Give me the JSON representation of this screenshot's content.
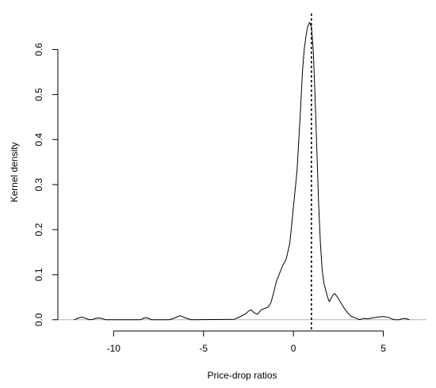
{
  "chart_data": {
    "type": "line",
    "title": "",
    "xlabel": "Price-drop ratios",
    "ylabel": "Kernel density",
    "xlim": [
      -13.1,
      7.4
    ],
    "ylim": [
      -0.025,
      0.68
    ],
    "x_ticks": [
      -10,
      -5,
      0,
      5
    ],
    "x_tick_labels": [
      "-10",
      "-5",
      "0",
      "5"
    ],
    "y_ticks": [
      0.0,
      0.1,
      0.2,
      0.3,
      0.4,
      0.5,
      0.6
    ],
    "y_tick_labels": [
      "0.0",
      "0.1",
      "0.2",
      "0.3",
      "0.4",
      "0.5",
      "0.6"
    ],
    "grid": false,
    "legend": "none",
    "reference_line_y": 0,
    "vertical_reference_x": 1.0,
    "series": [
      {
        "x": [
          -12.2,
          -11.95,
          -11.75,
          -11.55,
          -11.35,
          -11.15,
          -10.9,
          -10.65,
          -10.45,
          -10.2,
          -8.5,
          -8.3,
          -8.1,
          -7.9,
          -6.9,
          -6.6,
          -6.3,
          -6.0,
          -5.7,
          -3.3,
          -3.0,
          -2.7,
          -2.5,
          -2.35,
          -2.2,
          -2.0,
          -1.8,
          -1.6,
          -1.4,
          -1.25,
          -1.1,
          -0.95,
          -0.8,
          -0.6,
          -0.4,
          -0.2,
          0.0,
          0.1,
          0.2,
          0.3,
          0.4,
          0.5,
          0.6,
          0.7,
          0.8,
          0.9,
          1.0,
          1.1,
          1.2,
          1.3,
          1.4,
          1.5,
          1.6,
          1.7,
          1.8,
          1.9,
          2.0,
          2.1,
          2.2,
          2.3,
          2.45,
          2.6,
          2.8,
          3.0,
          3.2,
          3.5,
          3.7,
          3.9,
          4.1,
          4.4,
          4.7,
          5.0,
          5.3,
          5.6,
          5.9,
          6.1,
          6.3,
          6.45
        ],
        "y": [
          0.0,
          0.004,
          0.006,
          0.003,
          0.0,
          0.001,
          0.004,
          0.003,
          0.0,
          0.0,
          0.0,
          0.004,
          0.004,
          0.0,
          0.0,
          0.004,
          0.009,
          0.004,
          0.0,
          0.001,
          0.006,
          0.012,
          0.019,
          0.022,
          0.016,
          0.012,
          0.022,
          0.025,
          0.028,
          0.038,
          0.06,
          0.085,
          0.1,
          0.12,
          0.135,
          0.17,
          0.25,
          0.29,
          0.33,
          0.4,
          0.47,
          0.55,
          0.6,
          0.63,
          0.652,
          0.66,
          0.65,
          0.6,
          0.5,
          0.38,
          0.26,
          0.17,
          0.11,
          0.08,
          0.065,
          0.05,
          0.04,
          0.048,
          0.055,
          0.058,
          0.05,
          0.04,
          0.027,
          0.016,
          0.008,
          0.003,
          0.0,
          0.003,
          0.002,
          0.004,
          0.006,
          0.007,
          0.005,
          0.0,
          0.0,
          0.003,
          0.002,
          0.0
        ]
      }
    ]
  }
}
